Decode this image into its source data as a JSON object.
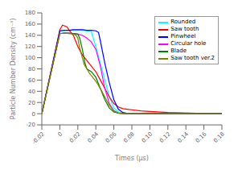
{
  "chart_data": {
    "type": "line",
    "xlabel": "Times (μs)",
    "ylabel": "Particle Number Density (cm⁻³)",
    "xlim": [
      -0.02,
      0.18
    ],
    "ylim": [
      -20,
      180
    ],
    "xticks": [
      -0.02,
      0,
      0.02,
      0.04,
      0.06,
      0.08,
      {
        "value": 0.1,
        "label": "0.10"
      },
      0.12,
      0.14,
      0.16,
      0.18
    ],
    "yticks": [
      -20,
      0,
      20,
      40,
      60,
      80,
      100,
      120,
      140,
      160,
      180
    ],
    "grid": false,
    "legend": "upper right",
    "series": [
      {
        "name": "Rounded",
        "color": "#00ffff",
        "x": [
          -0.02,
          0.0,
          0.005,
          0.01,
          0.015,
          0.02,
          0.025,
          0.03,
          0.035,
          0.038,
          0.04,
          0.045,
          0.05,
          0.055,
          0.06,
          0.065,
          0.07,
          0.075,
          0.08,
          0.09,
          0.18
        ],
        "values": [
          0,
          148,
          149,
          149,
          149,
          149,
          149,
          148,
          147,
          130,
          120,
          90,
          60,
          30,
          10,
          3,
          1,
          0.3,
          0.1,
          0,
          0
        ]
      },
      {
        "name": "Saw tooth",
        "color": "#ff0000",
        "x": [
          -0.02,
          0.0,
          0.003,
          0.005,
          0.008,
          0.01,
          0.015,
          0.02,
          0.025,
          0.03,
          0.035,
          0.04,
          0.045,
          0.05,
          0.055,
          0.06,
          0.065,
          0.07,
          0.075,
          0.08,
          0.09,
          0.1,
          0.12,
          0.16,
          0.18
        ],
        "values": [
          0,
          150,
          158,
          157,
          155,
          150,
          140,
          120,
          105,
          95,
          85,
          75,
          60,
          45,
          30,
          18,
          12,
          9,
          8,
          7,
          5,
          4,
          2,
          0.5,
          0
        ]
      },
      {
        "name": "Pinwheel",
        "color": "#0000ff",
        "x": [
          -0.02,
          0.0,
          0.005,
          0.01,
          0.015,
          0.02,
          0.025,
          0.03,
          0.035,
          0.04,
          0.043,
          0.045,
          0.05,
          0.055,
          0.06,
          0.065,
          0.07,
          0.075,
          0.08,
          0.09,
          0.18
        ],
        "values": [
          0,
          148,
          149,
          149,
          150,
          150,
          150,
          149,
          149,
          148,
          145,
          130,
          90,
          55,
          25,
          8,
          2,
          0.5,
          0.1,
          0,
          0
        ]
      },
      {
        "name": "Circular hole",
        "color": "#ff00ff",
        "x": [
          -0.02,
          0.0,
          0.005,
          0.01,
          0.015,
          0.02,
          0.025,
          0.03,
          0.035,
          0.04,
          0.045,
          0.05,
          0.055,
          0.06,
          0.065,
          0.07,
          0.08,
          0.09,
          0.18
        ],
        "values": [
          0,
          143,
          144,
          144,
          143,
          142,
          140,
          135,
          128,
          115,
          85,
          45,
          18,
          5,
          1,
          0.2,
          0,
          0,
          0
        ]
      },
      {
        "name": "Blade",
        "color": "#008000",
        "x": [
          -0.02,
          0.0,
          0.005,
          0.01,
          0.015,
          0.02,
          0.022,
          0.025,
          0.028,
          0.03,
          0.035,
          0.04,
          0.045,
          0.05,
          0.055,
          0.06,
          0.065,
          0.07,
          0.08,
          0.09,
          0.18
        ],
        "values": [
          0,
          143,
          144,
          144,
          143,
          142,
          135,
          115,
          90,
          80,
          75,
          65,
          45,
          25,
          10,
          3,
          1,
          0.2,
          0,
          0,
          0
        ]
      },
      {
        "name": "Saw tooth ver.2",
        "color": "#808000",
        "x": [
          -0.02,
          0.0,
          0.005,
          0.01,
          0.015,
          0.018,
          0.02,
          0.022,
          0.025,
          0.027,
          0.03,
          0.033,
          0.035,
          0.038,
          0.04,
          0.045,
          0.05,
          0.055,
          0.06,
          0.065,
          0.07,
          0.075,
          0.08,
          0.09,
          0.18
        ],
        "values": [
          0,
          143,
          144,
          143,
          142,
          140,
          135,
          118,
          100,
          88,
          80,
          72,
          68,
          62,
          58,
          45,
          30,
          15,
          5,
          1,
          0.3,
          0.1,
          0,
          0,
          0
        ]
      }
    ]
  }
}
